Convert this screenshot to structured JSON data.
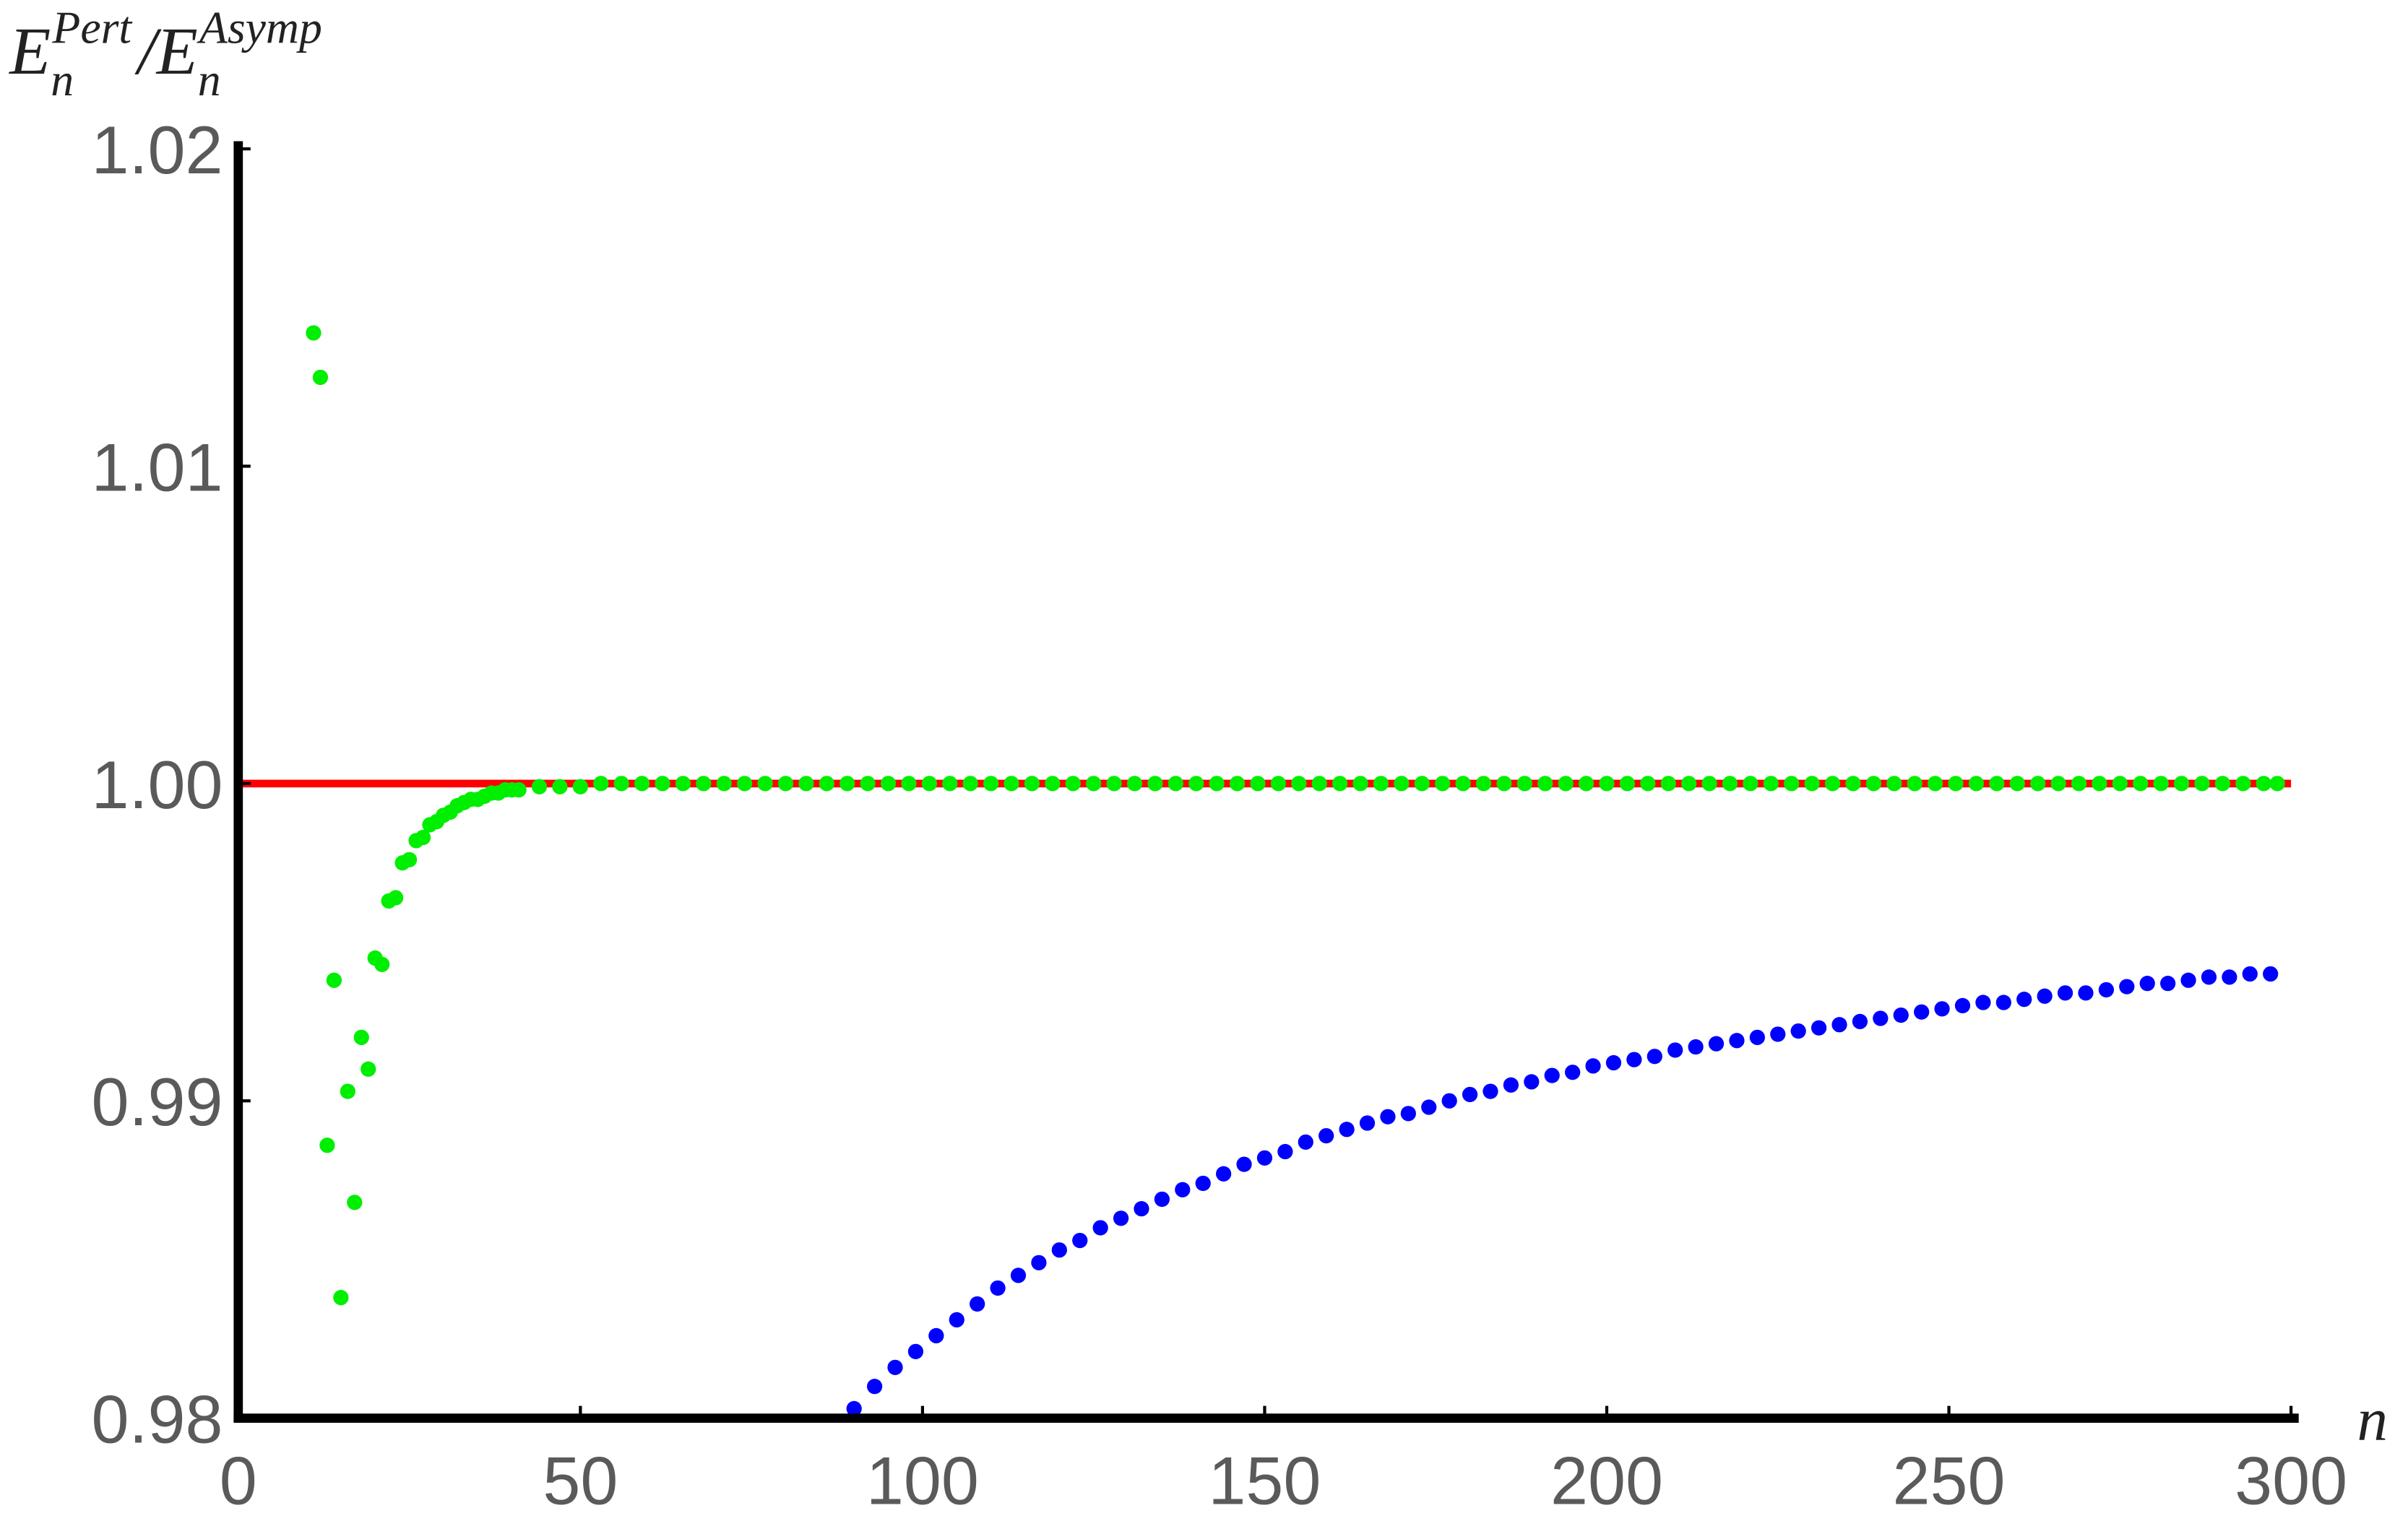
{
  "chart_data": {
    "type": "scatter",
    "ylabel": {
      "main1": "E",
      "sub1": "n",
      "sup1": "Pert",
      "sep": "/",
      "main2": "E",
      "sub2": "n",
      "sup2": "Asymp"
    },
    "xlabel": "n",
    "xlim": [
      0,
      300
    ],
    "ylim": [
      0.98,
      1.02
    ],
    "xticks": [
      0,
      50,
      100,
      150,
      200,
      250,
      300
    ],
    "yticks": [
      0.98,
      0.99,
      {
        "value": 1,
        "label": "1.00"
      },
      1.01,
      1.02
    ],
    "grid": false,
    "series": [
      {
        "style": "line",
        "color": "#ff0000",
        "x": [
          0,
          300
        ],
        "values": [
          1,
          1
        ]
      },
      {
        "style": "points",
        "color": "#0000ff",
        "x": [
          90,
          93,
          96,
          99,
          102,
          105,
          108,
          111,
          114,
          117,
          120,
          123,
          126,
          129,
          132,
          135,
          138,
          141,
          144,
          147,
          150,
          153,
          156,
          159,
          162,
          165,
          168,
          171,
          174,
          177,
          180,
          183,
          186,
          189,
          192,
          195,
          198,
          201,
          204,
          207,
          210,
          213,
          216,
          219,
          222,
          225,
          228,
          231,
          234,
          237,
          240,
          243,
          246,
          249,
          252,
          255,
          258,
          261,
          264,
          267,
          270,
          273,
          276,
          279,
          282,
          285,
          288,
          291,
          294,
          297
        ],
        "values": [
          0.9803,
          0.981,
          0.9816,
          0.9821,
          0.9826,
          0.9831,
          0.9836,
          0.9841,
          0.9845,
          0.9849,
          0.9853,
          0.9856,
          0.986,
          0.9863,
          0.9866,
          0.9869,
          0.9872,
          0.9874,
          0.9877,
          0.988,
          0.9882,
          0.9884,
          0.9887,
          0.9889,
          0.9891,
          0.9893,
          0.9895,
          0.9896,
          0.9898,
          0.99,
          0.9902,
          0.9903,
          0.9905,
          0.9906,
          0.9908,
          0.9909,
          0.9911,
          0.9912,
          0.9913,
          0.9914,
          0.9916,
          0.9917,
          0.9918,
          0.9919,
          0.992,
          0.9921,
          0.9922,
          0.9923,
          0.9924,
          0.9925,
          0.9926,
          0.9927,
          0.9928,
          0.9929,
          0.993,
          0.9931,
          0.9931,
          0.9932,
          0.9933,
          0.9934,
          0.9934,
          0.9935,
          0.9936,
          0.9937,
          0.9937,
          0.9938,
          0.9939,
          0.9939,
          0.994,
          0.994
        ]
      },
      {
        "style": "points",
        "color": "#00ee00",
        "x": [
          11,
          12,
          13,
          14,
          15,
          16,
          17,
          18,
          19,
          20,
          21,
          22,
          23,
          24,
          25,
          26,
          27,
          28,
          29,
          30,
          31,
          32,
          33,
          34,
          35,
          36,
          37,
          38,
          39,
          40,
          41,
          44,
          47,
          50,
          53,
          56,
          59,
          62,
          65,
          68,
          71,
          74,
          77,
          80,
          83,
          86,
          89,
          92,
          95,
          98,
          101,
          104,
          107,
          110,
          113,
          116,
          119,
          122,
          125,
          128,
          131,
          134,
          137,
          140,
          143,
          146,
          149,
          152,
          155,
          158,
          161,
          164,
          167,
          170,
          173,
          176,
          179,
          182,
          185,
          188,
          191,
          194,
          197,
          200,
          203,
          206,
          209,
          212,
          215,
          218,
          221,
          224,
          227,
          230,
          233,
          236,
          239,
          242,
          245,
          248,
          251,
          254,
          257,
          260,
          263,
          266,
          269,
          272,
          275,
          278,
          281,
          284,
          287,
          290,
          293,
          296,
          298
        ],
        "values": [
          1.0142,
          1.0128,
          0.9886,
          0.9938,
          0.9838,
          0.9903,
          0.9868,
          0.992,
          0.991,
          0.9945,
          0.9943,
          0.9963,
          0.9964,
          0.9975,
          0.9976,
          0.9982,
          0.9983,
          0.9987,
          0.9988,
          0.999,
          0.9991,
          0.9993,
          0.9994,
          0.9995,
          0.9995,
          0.9996,
          0.9997,
          0.9997,
          0.9998,
          0.9998,
          0.9998,
          0.9999,
          0.9999,
          0.9999,
          1,
          1,
          1,
          1,
          1,
          1,
          1,
          1,
          1,
          1,
          1,
          1,
          1,
          1,
          1,
          1,
          1,
          1,
          1,
          1,
          1,
          1,
          1,
          1,
          1,
          1,
          1,
          1,
          1,
          1,
          1,
          1,
          1,
          1,
          1,
          1,
          1,
          1,
          1,
          1,
          1,
          1,
          1,
          1,
          1,
          1,
          1,
          1,
          1,
          1,
          1,
          1,
          1,
          1,
          1,
          1,
          1,
          1,
          1,
          1,
          1,
          1,
          1,
          1,
          1,
          1,
          1,
          1,
          1,
          1,
          1,
          1,
          1,
          1,
          1,
          1,
          1,
          1,
          1,
          1,
          1,
          1,
          1
        ]
      }
    ]
  }
}
